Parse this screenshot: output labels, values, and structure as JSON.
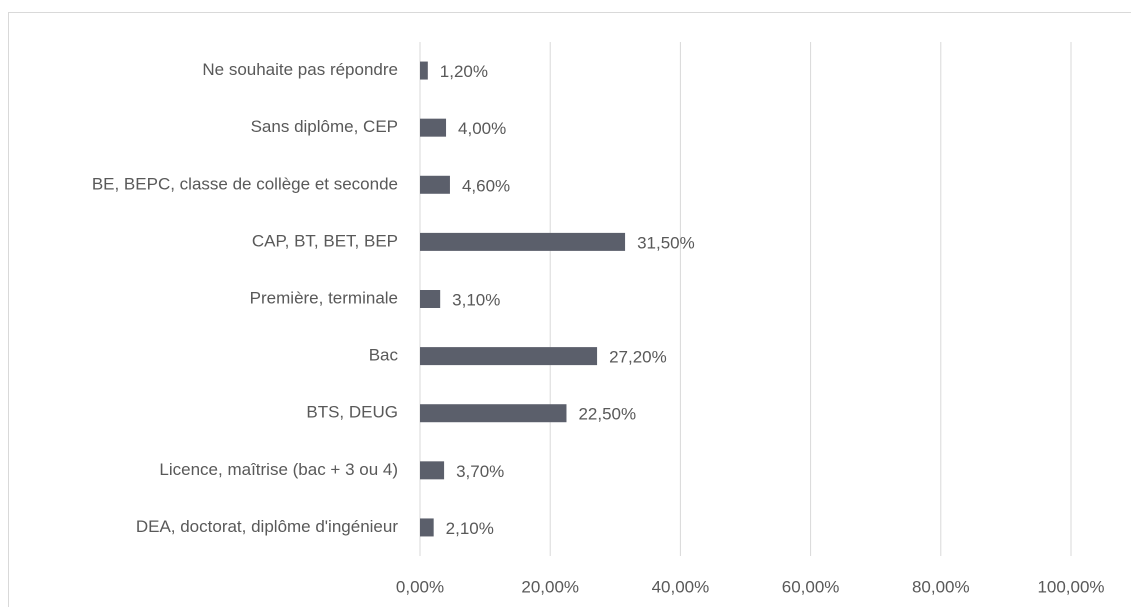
{
  "chart_data": {
    "type": "bar",
    "orientation": "horizontal",
    "categories": [
      "Ne souhaite pas répondre",
      "Sans diplôme, CEP",
      "BE, BEPC, classe de collège et seconde",
      "CAP, BT, BET, BEP",
      "Première, terminale",
      "Bac",
      "BTS, DEUG",
      "Licence, maîtrise (bac + 3 ou 4)",
      "DEA, doctorat, diplôme d'ingénieur"
    ],
    "values": [
      1.2,
      4.0,
      4.6,
      31.5,
      3.1,
      27.2,
      22.5,
      3.7,
      2.1
    ],
    "value_labels": [
      "1,20%",
      "4,00%",
      "4,60%",
      "31,50%",
      "3,10%",
      "27,20%",
      "22,50%",
      "3,70%",
      "2,10%"
    ],
    "color": "#5b5f6b",
    "xlim": [
      0,
      100
    ],
    "xticks": [
      {
        "value": 0,
        "label": "0,00%"
      },
      {
        "value": 20,
        "label": "20,00%"
      },
      {
        "value": 40,
        "label": "40,00%"
      },
      {
        "value": 60,
        "label": "60,00%"
      },
      {
        "value": 80,
        "label": "80,00%"
      },
      {
        "value": 100,
        "label": "100,00%"
      }
    ],
    "grid": true
  }
}
